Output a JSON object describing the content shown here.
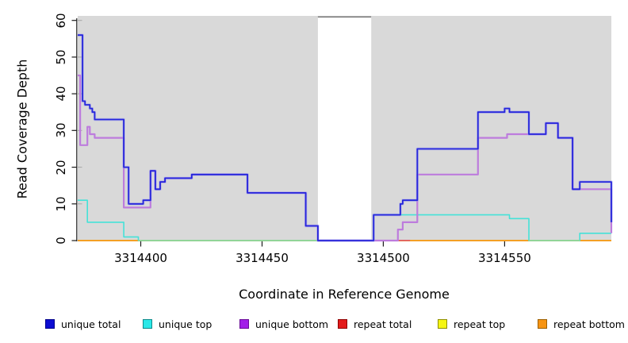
{
  "chart_data": {
    "type": "line",
    "subtype": "step-coverage-plot",
    "title": "",
    "xlabel": "Coordinate in Reference Genome",
    "ylabel": "Read Coverage Depth",
    "xlim": [
      3314374,
      3314594
    ],
    "ylim": [
      0,
      60
    ],
    "x_ticks": [
      3314400,
      3314450,
      3314500,
      3314550
    ],
    "y_ticks": [
      0,
      10,
      20,
      30,
      40,
      50,
      60
    ],
    "grid": "off",
    "background": "#d9d9d9",
    "gap_region": {
      "from": 3314473,
      "to": 3314495,
      "color": "#ffffff",
      "top_border_color": "#7d7d7d"
    },
    "series": [
      {
        "name": "unique total",
        "color": "#2626db",
        "halo_color": "#9898f0",
        "steps": [
          [
            3314374,
            56
          ],
          [
            3314376,
            38
          ],
          [
            3314377,
            37
          ],
          [
            3314379,
            36
          ],
          [
            3314380,
            35
          ],
          [
            3314381,
            33
          ],
          [
            3314393,
            20
          ],
          [
            3314395,
            10
          ],
          [
            3314401,
            11
          ],
          [
            3314404,
            19
          ],
          [
            3314406,
            14
          ],
          [
            3314408,
            16
          ],
          [
            3314410,
            17
          ],
          [
            3314421,
            18
          ],
          [
            3314444,
            13
          ],
          [
            3314468,
            4
          ],
          [
            3314473,
            0
          ],
          [
            3314496,
            7
          ],
          [
            3314507,
            10
          ],
          [
            3314508,
            11
          ],
          [
            3314514,
            25
          ],
          [
            3314539,
            35
          ],
          [
            3314550,
            36
          ],
          [
            3314552,
            35
          ],
          [
            3314560,
            29
          ],
          [
            3314567,
            32
          ],
          [
            3314572,
            28
          ],
          [
            3314578,
            14
          ],
          [
            3314581,
            16
          ],
          [
            3314594,
            5
          ]
        ]
      },
      {
        "name": "unique top",
        "color": "#45e2d8",
        "steps": [
          [
            3314374,
            11
          ],
          [
            3314378,
            5
          ],
          [
            3314393,
            1
          ],
          [
            3314399,
            0
          ],
          [
            3314496,
            7
          ],
          [
            3314552,
            6
          ],
          [
            3314560,
            0
          ],
          [
            3314581,
            2
          ],
          [
            3314594,
            2
          ]
        ]
      },
      {
        "name": "unique bottom",
        "color": "#bd7cdd",
        "steps": [
          [
            3314374,
            45
          ],
          [
            3314375,
            26
          ],
          [
            3314378,
            31
          ],
          [
            3314379,
            29
          ],
          [
            3314381,
            28
          ],
          [
            3314393,
            9
          ],
          [
            3314404,
            19
          ],
          [
            3314406,
            14
          ],
          [
            3314408,
            16
          ],
          [
            3314410,
            17
          ],
          [
            3314421,
            18
          ],
          [
            3314444,
            13
          ],
          [
            3314468,
            4
          ],
          [
            3314473,
            0
          ],
          [
            3314506,
            3
          ],
          [
            3314508,
            5
          ],
          [
            3314514,
            18
          ],
          [
            3314539,
            28
          ],
          [
            3314551,
            29
          ],
          [
            3314560,
            29
          ],
          [
            3314567,
            32
          ],
          [
            3314572,
            28
          ],
          [
            3314578,
            14
          ],
          [
            3314594,
            2
          ]
        ]
      },
      {
        "name": "repeat total",
        "color": "#e04848",
        "steps": [
          [
            3314374,
            0
          ],
          [
            3314594,
            0
          ]
        ]
      },
      {
        "name": "repeat top",
        "color": "#f5f50a",
        "steps": [
          [
            3314374,
            0
          ],
          [
            3314594,
            0
          ]
        ]
      },
      {
        "name": "repeat bottom",
        "color": "#f79418",
        "steps": [
          [
            3314374,
            0
          ],
          [
            3314594,
            0
          ]
        ]
      }
    ],
    "baseline_overlays": [
      {
        "from": 3314399,
        "to": 3314473,
        "color": "#8fd79c"
      },
      {
        "from": 3314560,
        "to": 3314581,
        "color": "#8fd79c"
      },
      {
        "from": 3314496,
        "to": 3314511,
        "color": "#df5a6a"
      }
    ],
    "legend": {
      "position": "bottom",
      "items": [
        {
          "label": "unique total",
          "fill": "#0d0dd2",
          "border": "#00008b"
        },
        {
          "label": "unique top",
          "fill": "#2ae8e8",
          "border": "#0e8a8a"
        },
        {
          "label": "unique bottom",
          "fill": "#a21fe8",
          "border": "#6a0a99"
        },
        {
          "label": "repeat total",
          "fill": "#e31a1a",
          "border": "#8f0000"
        },
        {
          "label": "repeat top",
          "fill": "#f6f612",
          "border": "#8f8f00"
        },
        {
          "label": "repeat bottom",
          "fill": "#f79412",
          "border": "#9c5f00"
        }
      ]
    }
  }
}
